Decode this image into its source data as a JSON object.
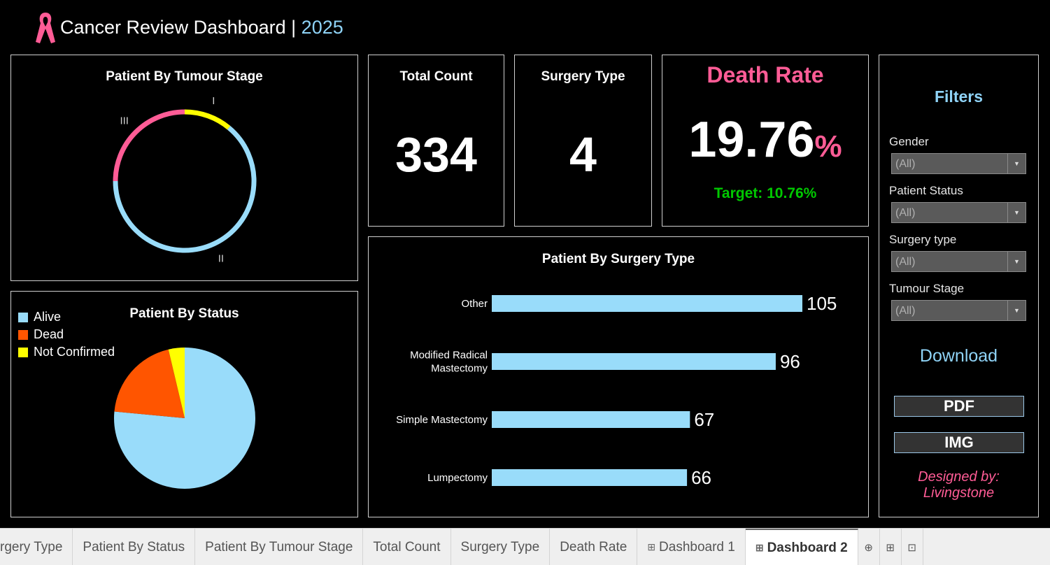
{
  "header": {
    "title": "Cancer Review Dashboard | ",
    "year": "2025",
    "ribbon_color": "#ff5c96"
  },
  "tumour_stage": {
    "title": "Patient By Tumour Stage",
    "labels": [
      "I",
      "II",
      "III"
    ],
    "colors": {
      "I": "#ffff00",
      "II": "#99dcfa",
      "III": "#ff5c96"
    },
    "share_percent": {
      "I": 11,
      "II": 64,
      "III": 25
    }
  },
  "status": {
    "title": "Patient By Status",
    "legend": [
      {
        "label": "Alive",
        "color": "#99dcfa"
      },
      {
        "label": "Dead",
        "color": "#ff5500"
      },
      {
        "label": "Not Confirmed",
        "color": "#ffff00"
      }
    ],
    "share_percent": [
      76.5,
      19.8,
      3.7
    ]
  },
  "total_count": {
    "title": "Total Count",
    "value": "334"
  },
  "surgery_type_kpi": {
    "title": "Surgery Type",
    "value": "4"
  },
  "death_rate": {
    "title": "Death Rate",
    "value": "19.76",
    "unit": "%",
    "target_label": "Target: ",
    "target_value": "10.76%",
    "title_color": "#ff5c96",
    "target_color": "#00c800"
  },
  "chart_data": {
    "type": "bar",
    "orientation": "horizontal",
    "title": "Patient By Surgery Type",
    "categories": [
      "Other",
      "Modified Radical\nMastectomy",
      "Simple Mastectomy",
      "Lumpectomy"
    ],
    "values": [
      105,
      96,
      67,
      66
    ],
    "color": "#99dcfa",
    "xlabel": "",
    "ylabel": ""
  },
  "filters": {
    "title": "Filters",
    "items": [
      {
        "label": "Gender",
        "value": "(All)"
      },
      {
        "label": "Patient Status",
        "value": "(All)"
      },
      {
        "label": "Surgery type",
        "value": "(All)"
      },
      {
        "label": "Tumour Stage",
        "value": "(All)"
      }
    ],
    "download_label": "Download",
    "pdf_label": "PDF",
    "img_label": "IMG",
    "designed_line1": "Designed by:",
    "designed_line2": "Livingstone"
  },
  "tabs": [
    {
      "label": "rgery Type",
      "icon": false
    },
    {
      "label": "Patient By Status",
      "icon": false
    },
    {
      "label": "Patient By Tumour Stage",
      "icon": false
    },
    {
      "label": "Total Count",
      "icon": false
    },
    {
      "label": "Surgery Type",
      "icon": false
    },
    {
      "label": "Death Rate",
      "icon": false
    },
    {
      "label": "Dashboard 1",
      "icon": true
    },
    {
      "label": "Dashboard 2",
      "icon": true,
      "active": true
    }
  ]
}
